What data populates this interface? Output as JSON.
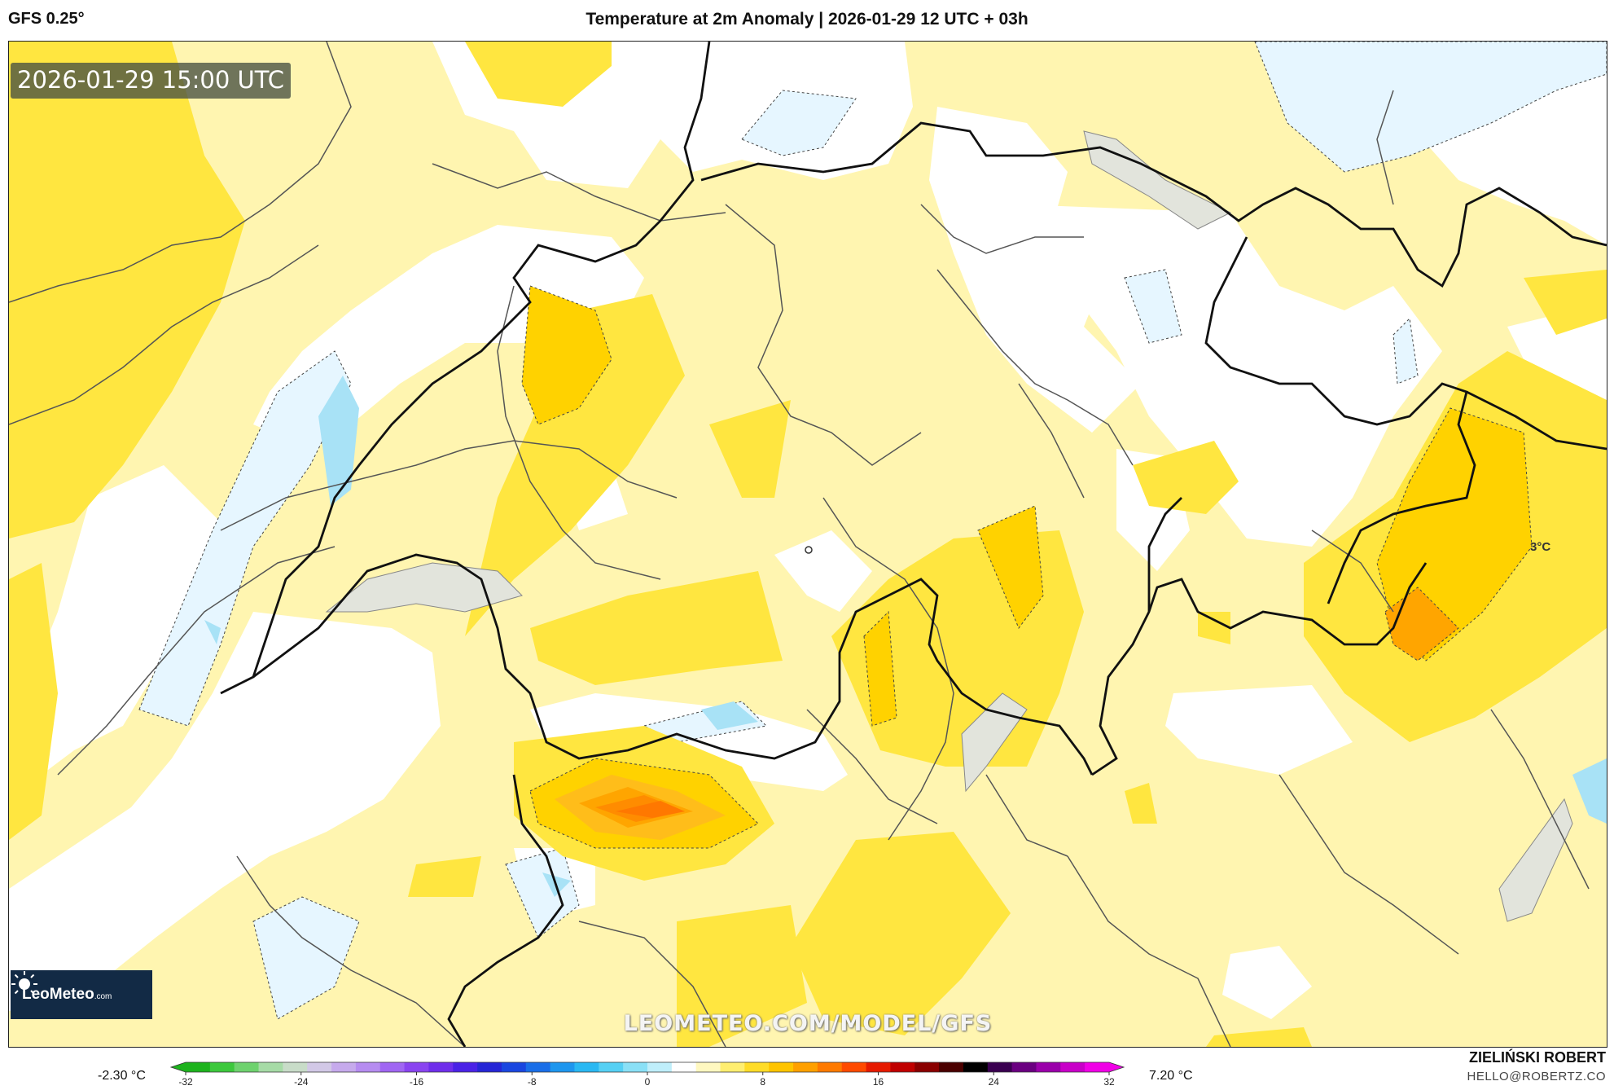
{
  "header": {
    "model": "GFS 0.25°",
    "title": "Temperature at 2m Anomaly | 2026-01-29 12 UTC + 03h"
  },
  "map": {
    "valid_time": "2026-01-29 15:00 UTC",
    "contour_label": "3°C",
    "watermark": "LEOMETEO.COM/MODEL/GFS",
    "logo": {
      "name": "LeoMeteo",
      "suffix": ".com",
      "icon": "sun-icon"
    },
    "palette": {
      "light_yellow": "#fff5b0",
      "yellow": "#ffe640",
      "gold": "#ffd200",
      "orange": "#ffa500",
      "dark_orange": "#ff7800",
      "light_blue": "#e6f6ff",
      "blue": "#a8e2f6",
      "lake": "#e2e4dc"
    }
  },
  "legend": {
    "min_label": "-2.30 °C",
    "max_label": "7.20 °C",
    "ticks": [
      "-32",
      "-24",
      "-16",
      "-8",
      "0",
      "8",
      "16",
      "24",
      "32"
    ],
    "colors": [
      "#1db31d",
      "#3cc83c",
      "#6ed26e",
      "#a6dba6",
      "#c8dcc8",
      "#d2c8e6",
      "#c6aaec",
      "#b68cf0",
      "#a066f2",
      "#8a44f0",
      "#6f2eeb",
      "#4a22e6",
      "#2626d6",
      "#1a46e0",
      "#1a6ee8",
      "#1e96ee",
      "#2ab8f2",
      "#56d0f4",
      "#8ae0f6",
      "#bfeefa",
      "#ffffff",
      "#fff8c0",
      "#ffee70",
      "#ffdc28",
      "#ffc400",
      "#ffa000",
      "#ff7a00",
      "#ff4a00",
      "#e61a00",
      "#c00000",
      "#8a0000",
      "#4a0000",
      "#000000",
      "#3a0050",
      "#6a0080",
      "#9a00aa",
      "#c800c8",
      "#f000e6"
    ]
  },
  "credits": {
    "author": "ZIELIŃSKI ROBERT",
    "email": "HELLO@ROBERTZ.CO"
  }
}
